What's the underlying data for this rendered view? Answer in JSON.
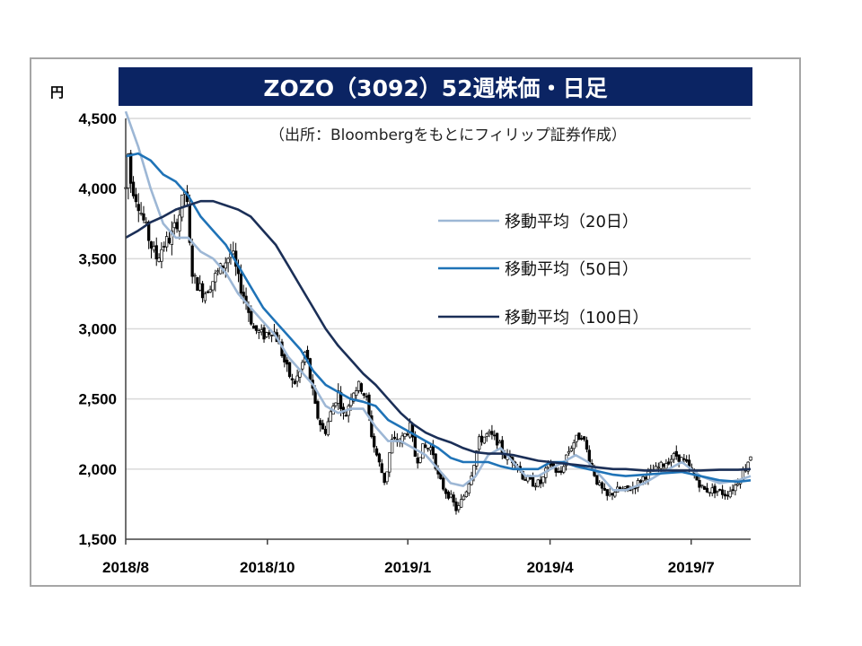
{
  "title": "ZOZO（3092）52週株価・日足",
  "unit": "円",
  "source": "（出所：Bloombergをもとにフィリップ証券作成）",
  "colors": {
    "title_bg": "#0b2463",
    "up": "#ffffff",
    "down": "#000000",
    "ma20": "#9db7d5",
    "ma50": "#1f73b7",
    "ma100": "#1b2f57"
  },
  "chart_data": {
    "type": "candlestick",
    "title": "ZOZO（3092）52週株価・日足",
    "ylabel": "円",
    "ylim": [
      1500,
      4500
    ],
    "yticks": [
      {
        "value": 1500,
        "label": "1,500"
      },
      {
        "value": 2000,
        "label": "2,000"
      },
      {
        "value": 2500,
        "label": "2,500"
      },
      {
        "value": 3000,
        "label": "3,000"
      },
      {
        "value": 3500,
        "label": "3,500"
      },
      {
        "value": 4000,
        "label": "4,000"
      },
      {
        "value": 4500,
        "label": "4,500"
      }
    ],
    "xticks": [
      {
        "label": "2018/8",
        "pos": 0.0
      },
      {
        "label": "2018/10",
        "pos": 0.2267
      },
      {
        "label": "2019/1",
        "pos": 0.4514
      },
      {
        "label": "2019/4",
        "pos": 0.679
      },
      {
        "label": "2019/7",
        "pos": 0.9048
      }
    ],
    "price_path": [
      [
        0.0,
        4000
      ],
      [
        0.003,
        4300
      ],
      [
        0.008,
        4050
      ],
      [
        0.012,
        4000
      ],
      [
        0.02,
        3900
      ],
      [
        0.03,
        3750
      ],
      [
        0.04,
        3600
      ],
      [
        0.05,
        3500
      ],
      [
        0.06,
        3600
      ],
      [
        0.072,
        3650
      ],
      [
        0.085,
        3800
      ],
      [
        0.095,
        4000
      ],
      [
        0.1,
        3800
      ],
      [
        0.104,
        3450
      ],
      [
        0.11,
        3350
      ],
      [
        0.125,
        3250
      ],
      [
        0.14,
        3350
      ],
      [
        0.155,
        3450
      ],
      [
        0.17,
        3550
      ],
      [
        0.18,
        3350
      ],
      [
        0.192,
        3200
      ],
      [
        0.205,
        3000
      ],
      [
        0.22,
        2950
      ],
      [
        0.235,
        3000
      ],
      [
        0.245,
        2900
      ],
      [
        0.255,
        2750
      ],
      [
        0.268,
        2600
      ],
      [
        0.28,
        2700
      ],
      [
        0.288,
        2850
      ],
      [
        0.295,
        2650
      ],
      [
        0.305,
        2400
      ],
      [
        0.318,
        2250
      ],
      [
        0.328,
        2400
      ],
      [
        0.34,
        2550
      ],
      [
        0.35,
        2350
      ],
      [
        0.362,
        2550
      ],
      [
        0.375,
        2600
      ],
      [
        0.385,
        2500
      ],
      [
        0.395,
        2200
      ],
      [
        0.405,
        2050
      ],
      [
        0.415,
        1900
      ],
      [
        0.425,
        2200
      ],
      [
        0.44,
        2200
      ],
      [
        0.455,
        2300
      ],
      [
        0.465,
        2050
      ],
      [
        0.475,
        2150
      ],
      [
        0.49,
        2150
      ],
      [
        0.5,
        1950
      ],
      [
        0.51,
        1850
      ],
      [
        0.52,
        1800
      ],
      [
        0.53,
        1700
      ],
      [
        0.545,
        1850
      ],
      [
        0.555,
        2000
      ],
      [
        0.565,
        2200
      ],
      [
        0.58,
        2250
      ],
      [
        0.595,
        2200
      ],
      [
        0.605,
        2100
      ],
      [
        0.625,
        2050
      ],
      [
        0.635,
        1950
      ],
      [
        0.65,
        1900
      ],
      [
        0.665,
        1900
      ],
      [
        0.678,
        2050
      ],
      [
        0.695,
        1950
      ],
      [
        0.705,
        2100
      ],
      [
        0.718,
        2200
      ],
      [
        0.73,
        2250
      ],
      [
        0.74,
        2100
      ],
      [
        0.755,
        1900
      ],
      [
        0.77,
        1800
      ],
      [
        0.785,
        1850
      ],
      [
        0.8,
        1850
      ],
      [
        0.815,
        1880
      ],
      [
        0.83,
        1950
      ],
      [
        0.85,
        2000
      ],
      [
        0.865,
        2050
      ],
      [
        0.88,
        2100
      ],
      [
        0.895,
        2050
      ],
      [
        0.91,
        1950
      ],
      [
        0.925,
        1850
      ],
      [
        0.945,
        1850
      ],
      [
        0.96,
        1820
      ],
      [
        0.975,
        1880
      ],
      [
        0.99,
        2000
      ],
      [
        1.0,
        2100
      ]
    ],
    "series": [
      {
        "name": "移動平均（20日）",
        "color": "#9db7d5",
        "points": [
          [
            0.0,
            4550
          ],
          [
            0.02,
            4300
          ],
          [
            0.04,
            4000
          ],
          [
            0.06,
            3750
          ],
          [
            0.08,
            3650
          ],
          [
            0.1,
            3650
          ],
          [
            0.12,
            3550
          ],
          [
            0.14,
            3500
          ],
          [
            0.16,
            3400
          ],
          [
            0.18,
            3250
          ],
          [
            0.2,
            3150
          ],
          [
            0.22,
            3050
          ],
          [
            0.24,
            2950
          ],
          [
            0.26,
            2800
          ],
          [
            0.28,
            2700
          ],
          [
            0.3,
            2600
          ],
          [
            0.32,
            2450
          ],
          [
            0.34,
            2400
          ],
          [
            0.36,
            2430
          ],
          [
            0.38,
            2430
          ],
          [
            0.4,
            2300
          ],
          [
            0.42,
            2200
          ],
          [
            0.44,
            2200
          ],
          [
            0.46,
            2150
          ],
          [
            0.48,
            2100
          ],
          [
            0.5,
            2000
          ],
          [
            0.52,
            1900
          ],
          [
            0.54,
            1880
          ],
          [
            0.56,
            1950
          ],
          [
            0.58,
            2100
          ],
          [
            0.6,
            2150
          ],
          [
            0.62,
            2050
          ],
          [
            0.64,
            1950
          ],
          [
            0.66,
            1950
          ],
          [
            0.68,
            2000
          ],
          [
            0.7,
            2050
          ],
          [
            0.72,
            2100
          ],
          [
            0.74,
            2050
          ],
          [
            0.76,
            1950
          ],
          [
            0.78,
            1850
          ],
          [
            0.8,
            1850
          ],
          [
            0.83,
            1900
          ],
          [
            0.86,
            1980
          ],
          [
            0.89,
            2050
          ],
          [
            0.92,
            1950
          ],
          [
            0.95,
            1900
          ],
          [
            0.98,
            1920
          ],
          [
            1.0,
            1950
          ]
        ]
      },
      {
        "name": "移動平均（50日）",
        "color": "#1f73b7",
        "points": [
          [
            0.0,
            4230
          ],
          [
            0.02,
            4250
          ],
          [
            0.04,
            4200
          ],
          [
            0.06,
            4100
          ],
          [
            0.08,
            4050
          ],
          [
            0.1,
            3950
          ],
          [
            0.12,
            3800
          ],
          [
            0.14,
            3700
          ],
          [
            0.16,
            3600
          ],
          [
            0.18,
            3450
          ],
          [
            0.2,
            3300
          ],
          [
            0.22,
            3150
          ],
          [
            0.24,
            3050
          ],
          [
            0.26,
            2950
          ],
          [
            0.28,
            2850
          ],
          [
            0.3,
            2700
          ],
          [
            0.32,
            2600
          ],
          [
            0.34,
            2550
          ],
          [
            0.36,
            2500
          ],
          [
            0.38,
            2480
          ],
          [
            0.4,
            2450
          ],
          [
            0.42,
            2350
          ],
          [
            0.44,
            2300
          ],
          [
            0.46,
            2250
          ],
          [
            0.48,
            2200
          ],
          [
            0.5,
            2150
          ],
          [
            0.52,
            2080
          ],
          [
            0.54,
            2050
          ],
          [
            0.56,
            2050
          ],
          [
            0.58,
            2050
          ],
          [
            0.6,
            2020
          ],
          [
            0.62,
            2000
          ],
          [
            0.64,
            2000
          ],
          [
            0.66,
            2000
          ],
          [
            0.68,
            2050
          ],
          [
            0.7,
            2050
          ],
          [
            0.72,
            2020
          ],
          [
            0.74,
            2000
          ],
          [
            0.76,
            1980
          ],
          [
            0.78,
            1960
          ],
          [
            0.8,
            1950
          ],
          [
            0.83,
            1960
          ],
          [
            0.86,
            1970
          ],
          [
            0.89,
            1980
          ],
          [
            0.92,
            1950
          ],
          [
            0.95,
            1920
          ],
          [
            0.98,
            1910
          ],
          [
            1.0,
            1920
          ]
        ]
      },
      {
        "name": "移動平均（100日）",
        "color": "#1b2f57",
        "points": [
          [
            0.0,
            3650
          ],
          [
            0.02,
            3700
          ],
          [
            0.04,
            3760
          ],
          [
            0.06,
            3800
          ],
          [
            0.08,
            3850
          ],
          [
            0.1,
            3880
          ],
          [
            0.12,
            3910
          ],
          [
            0.14,
            3910
          ],
          [
            0.16,
            3880
          ],
          [
            0.18,
            3850
          ],
          [
            0.2,
            3800
          ],
          [
            0.22,
            3700
          ],
          [
            0.24,
            3600
          ],
          [
            0.26,
            3450
          ],
          [
            0.28,
            3300
          ],
          [
            0.3,
            3150
          ],
          [
            0.32,
            3000
          ],
          [
            0.34,
            2880
          ],
          [
            0.36,
            2780
          ],
          [
            0.38,
            2680
          ],
          [
            0.4,
            2600
          ],
          [
            0.42,
            2500
          ],
          [
            0.44,
            2400
          ],
          [
            0.46,
            2320
          ],
          [
            0.48,
            2260
          ],
          [
            0.5,
            2220
          ],
          [
            0.52,
            2190
          ],
          [
            0.54,
            2150
          ],
          [
            0.56,
            2120
          ],
          [
            0.58,
            2110
          ],
          [
            0.6,
            2110
          ],
          [
            0.62,
            2100
          ],
          [
            0.64,
            2080
          ],
          [
            0.66,
            2060
          ],
          [
            0.68,
            2050
          ],
          [
            0.7,
            2040
          ],
          [
            0.72,
            2030
          ],
          [
            0.74,
            2020
          ],
          [
            0.76,
            2010
          ],
          [
            0.78,
            2000
          ],
          [
            0.8,
            2000
          ],
          [
            0.83,
            1990
          ],
          [
            0.86,
            1990
          ],
          [
            0.89,
            1990
          ],
          [
            0.92,
            1990
          ],
          [
            0.95,
            1995
          ],
          [
            0.98,
            1995
          ],
          [
            1.0,
            2000
          ]
        ]
      }
    ],
    "legend": "top-right",
    "grid": true
  }
}
